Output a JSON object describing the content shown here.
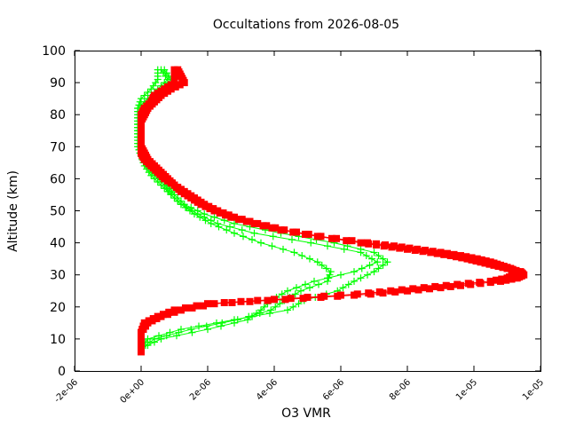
{
  "chart_data": {
    "type": "scatter",
    "title": "Occultations from 2026-08-05",
    "xlabel": "O3 VMR",
    "ylabel": "Altitude (km)",
    "xlim": [
      -2e-06,
      1e-05
    ],
    "xlim_max_label_value": 1.2e-05,
    "xaxis": {
      "min": -2e-06,
      "max": 1.2e-05,
      "ticks": [
        -2e-06,
        0,
        2e-06,
        4e-06,
        6e-06,
        8e-06,
        1e-05,
        1.2e-05
      ],
      "tick_labels": [
        "-2e-06",
        "0e+00",
        "2e-06",
        "4e-06",
        "6e-06",
        "8e-06",
        "1e-05",
        "1e-05"
      ]
    },
    "yaxis": {
      "min": 0,
      "max": 100,
      "ticks": [
        0,
        10,
        20,
        30,
        40,
        50,
        60,
        70,
        80,
        90,
        100
      ],
      "tick_labels": [
        "0",
        "10",
        "20",
        "30",
        "40",
        "50",
        "60",
        "70",
        "80",
        "90",
        "100"
      ]
    },
    "grid": false,
    "series": [
      {
        "color": "#00ff00",
        "marker": "plus",
        "profiles": [
          {
            "altitude": [
              7,
              10,
              13,
              16,
              19,
              22,
              25,
              28,
              31,
              34,
              37,
              40,
              43,
              46,
              49,
              52,
              55,
              58,
              61,
              64,
              67,
              70,
              73,
              76,
              79,
              82,
              85,
              88,
              91,
              94
            ],
            "vmr": [
              0.0,
              2e-07,
              1.2e-06,
              2.8e-06,
              4.4e-06,
              4.9e-06,
              5.9e-06,
              6.4e-06,
              7e-06,
              7.4e-06,
              7e-06,
              5.8e-06,
              4.2e-06,
              2.8e-06,
              1.9e-06,
              1.3e-06,
              1e-06,
              8e-07,
              5e-07,
              3e-07,
              1e-07,
              0.0,
              -1e-07,
              -1e-07,
              -1e-07,
              -1e-07,
              0.0,
              3e-07,
              5e-07,
              5e-07
            ]
          },
          {
            "altitude": [
              7,
              10,
              13,
              16,
              19,
              22,
              25,
              28,
              31,
              34,
              37,
              40,
              43,
              46,
              49,
              52,
              55,
              58,
              61,
              64,
              67,
              70,
              73,
              76,
              79,
              82,
              85,
              88,
              91,
              94
            ],
            "vmr": [
              0.0,
              4e-07,
              1.5e-06,
              2.9e-06,
              3.9e-06,
              4.3e-06,
              4.8e-06,
              5.6e-06,
              5.7e-06,
              5.3e-06,
              4.6e-06,
              3.6e-06,
              2.8e-06,
              2.1e-06,
              1.6e-06,
              1.2e-06,
              9e-07,
              7e-07,
              4e-07,
              2e-07,
              0.0,
              -1e-07,
              -1e-07,
              -1e-07,
              -1e-07,
              -1e-07,
              2e-07,
              5e-07,
              8e-07,
              6e-07
            ]
          },
          {
            "altitude": [
              7,
              10,
              13,
              16,
              19,
              22,
              25,
              28,
              31,
              34,
              37,
              40,
              43,
              46,
              49,
              52,
              55,
              58,
              61,
              64,
              67,
              70,
              73,
              76,
              79,
              82,
              85,
              88,
              91,
              94
            ],
            "vmr": [
              0.0,
              6e-07,
              2e-06,
              3.2e-06,
              3.6e-06,
              3.9e-06,
              4.4e-06,
              5.2e-06,
              6.4e-06,
              7.1e-06,
              6.6e-06,
              5.1e-06,
              3.4e-06,
              2.3e-06,
              1.7e-06,
              1.2e-06,
              9e-07,
              6e-07,
              3e-07,
              1e-07,
              0.0,
              -1e-07,
              -1e-07,
              -1e-07,
              -1e-07,
              0.0,
              3e-07,
              6e-07,
              9e-07,
              7e-07
            ]
          }
        ]
      },
      {
        "color": "#ff0000",
        "marker": "square",
        "profiles": [
          {
            "altitude": [
              6,
              9,
              12,
              15,
              17,
              19,
              21,
              22,
              23,
              24,
              25,
              26,
              27,
              28,
              29,
              30,
              31,
              32,
              33,
              34,
              35,
              36,
              37,
              38,
              39,
              40,
              42,
              44,
              46,
              48,
              50,
              52,
              54,
              56,
              58,
              60,
              62,
              64,
              66,
              68,
              70,
              72,
              74,
              76,
              78,
              80,
              82,
              84,
              86,
              88,
              90,
              92,
              94
            ],
            "vmr": [
              0.0,
              0.0,
              0.0,
              1e-07,
              5e-07,
              1e-06,
              2e-06,
              3.5e-06,
              5e-06,
              6.5e-06,
              7.5e-06,
              8.5e-06,
              9.5e-06,
              1.05e-05,
              1.1e-05,
              1.12e-05,
              1.13e-05,
              1.11e-05,
              1.08e-05,
              1.05e-05,
              1.01e-05,
              9.6e-06,
              9e-06,
              8.3e-06,
              7.6e-06,
              6.8e-06,
              5.4e-06,
              4.3e-06,
              3.5e-06,
              2.8e-06,
              2.3e-06,
              1.9e-06,
              1.6e-06,
              1.3e-06,
              1e-06,
              8e-07,
              6e-07,
              4e-07,
              2e-07,
              1e-07,
              0.0,
              0.0,
              0.0,
              0.0,
              0.0,
              0.0,
              1e-07,
              3e-07,
              4e-07,
              7e-07,
              1e-06,
              1e-06,
              1e-06
            ]
          },
          {
            "altitude": [
              6,
              9,
              12,
              15,
              17,
              19,
              21,
              22,
              23,
              24,
              25,
              26,
              27,
              28,
              29,
              30,
              31,
              32,
              33,
              34,
              35,
              36,
              37,
              38,
              39,
              40,
              42,
              44,
              46,
              48,
              50,
              52,
              54,
              56,
              58,
              60,
              62,
              64,
              66,
              68,
              70,
              72,
              74,
              76,
              78,
              80,
              82,
              84,
              86,
              88,
              90,
              92,
              94
            ],
            "vmr": [
              0.0,
              0.0,
              0.0,
              2e-07,
              6e-07,
              1.2e-06,
              2.2e-06,
              3.8e-06,
              5.4e-06,
              6.9e-06,
              8e-06,
              9e-06,
              9.9e-06,
              1.08e-05,
              1.13e-05,
              1.15e-05,
              1.14e-05,
              1.1e-05,
              1.06e-05,
              1.02e-05,
              9.8e-06,
              9.3e-06,
              8.7e-06,
              8e-06,
              7.3e-06,
              6.6e-06,
              5.3e-06,
              4.2e-06,
              3.4e-06,
              2.7e-06,
              2.2e-06,
              1.8e-06,
              1.5e-06,
              1.2e-06,
              1e-06,
              7e-07,
              5e-07,
              3e-07,
              1e-07,
              0.0,
              0.0,
              0.0,
              0.0,
              0.0,
              0.0,
              1e-07,
              2e-07,
              4e-07,
              6e-07,
              9e-07,
              1.3e-06,
              1.2e-06,
              1.1e-06
            ]
          }
        ]
      }
    ]
  }
}
